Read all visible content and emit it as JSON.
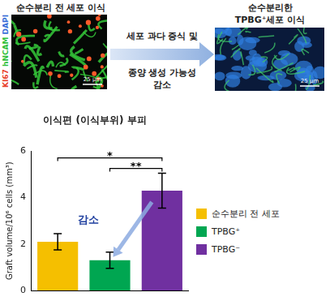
{
  "panels": {
    "left": {
      "title": "순수분리 전 세포 이식",
      "channels": [
        {
          "label": "KI67",
          "color": "#e8402a"
        },
        {
          "label": "hNCAM",
          "color": "#2fbf3a"
        },
        {
          "label": "DAPI",
          "color": "#3a6fd8"
        }
      ],
      "scale_bar": "25 μm"
    },
    "right": {
      "title": [
        "순수분리한",
        "TPBG⁺세포 이식"
      ],
      "scale_bar": "25 μm"
    },
    "arrow_text": [
      "세포 과다 증식 및",
      "종양 생성 가능성",
      "감소"
    ]
  },
  "chart_data": {
    "type": "bar",
    "title": "이식편 (이식부위) 부피",
    "y_label": "Graft volume/10⁶ cells (mm³)",
    "categories": [
      "순수분리 전 세포",
      "TPBG⁺",
      "TPBG⁻"
    ],
    "values": [
      2.1,
      1.3,
      4.3
    ],
    "errors": [
      0.35,
      0.35,
      0.75
    ],
    "colors": [
      "#f5bf00",
      "#00a651",
      "#7030a0"
    ],
    "ylim": [
      0,
      6
    ],
    "yticks": [
      0,
      2,
      4,
      6
    ],
    "grid": false,
    "tick_labels": "y",
    "legend": "right",
    "significance": [
      {
        "between": [
          "순수분리 전 세포",
          "TPBG⁻"
        ],
        "label": "*"
      },
      {
        "between": [
          "TPBG⁺",
          "TPBG⁻"
        ],
        "label": "**"
      }
    ],
    "annotations": [
      {
        "text": "감소",
        "color": "#1f3f9f",
        "arrow": [
          "TPBG⁻",
          "TPBG⁺"
        ]
      }
    ]
  }
}
